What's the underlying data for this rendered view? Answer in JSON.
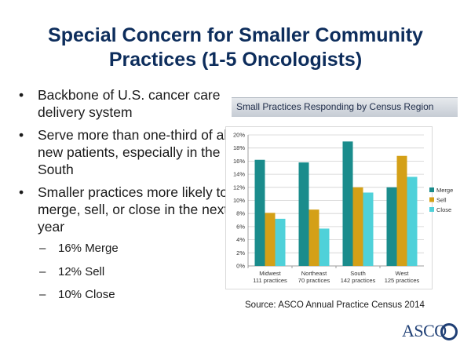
{
  "slide": {
    "title_line1": "Special Concern for Smaller Community",
    "title_line2": "Practices (1-5 Oncologists)",
    "bullets": [
      {
        "text": "Backbone of U.S. cancer care delivery system"
      },
      {
        "text": "Serve more than one-third of all new patients, especially in the South"
      },
      {
        "text": "Smaller practices more likely to merge, sell, or close in the next year"
      }
    ],
    "subbullets": [
      {
        "text": "16% Merge"
      },
      {
        "text": "12% Sell"
      },
      {
        "text": "10% Close"
      }
    ],
    "bullet_glyph": "•",
    "dash_glyph": "–",
    "source": "Source: ASCO Annual Practice Census 2014",
    "logo_text": "ASCO"
  },
  "chart_data": {
    "type": "bar",
    "title": "Small Practices Responding by Census Region",
    "categories": [
      {
        "name": "Midwest",
        "sub": "111 practices"
      },
      {
        "name": "Northeast",
        "sub": "70 practices"
      },
      {
        "name": "South",
        "sub": "142 practices"
      },
      {
        "name": "West",
        "sub": "125 practices"
      }
    ],
    "series": [
      {
        "name": "Merge",
        "color": "#1a8c8c",
        "values": [
          16.2,
          15.8,
          19.0,
          12.0
        ]
      },
      {
        "name": "Sell",
        "color": "#d4a017",
        "values": [
          8.1,
          8.6,
          12.0,
          16.8
        ]
      },
      {
        "name": "Close",
        "color": "#4fd1d9",
        "values": [
          7.2,
          5.7,
          11.2,
          13.6
        ]
      }
    ],
    "ylim": [
      0,
      20
    ],
    "yticks": [
      "0%",
      "2%",
      "4%",
      "6%",
      "8%",
      "10%",
      "12%",
      "14%",
      "16%",
      "18%",
      "20%"
    ],
    "legend_position": "right",
    "xlabel": "",
    "ylabel": ""
  }
}
